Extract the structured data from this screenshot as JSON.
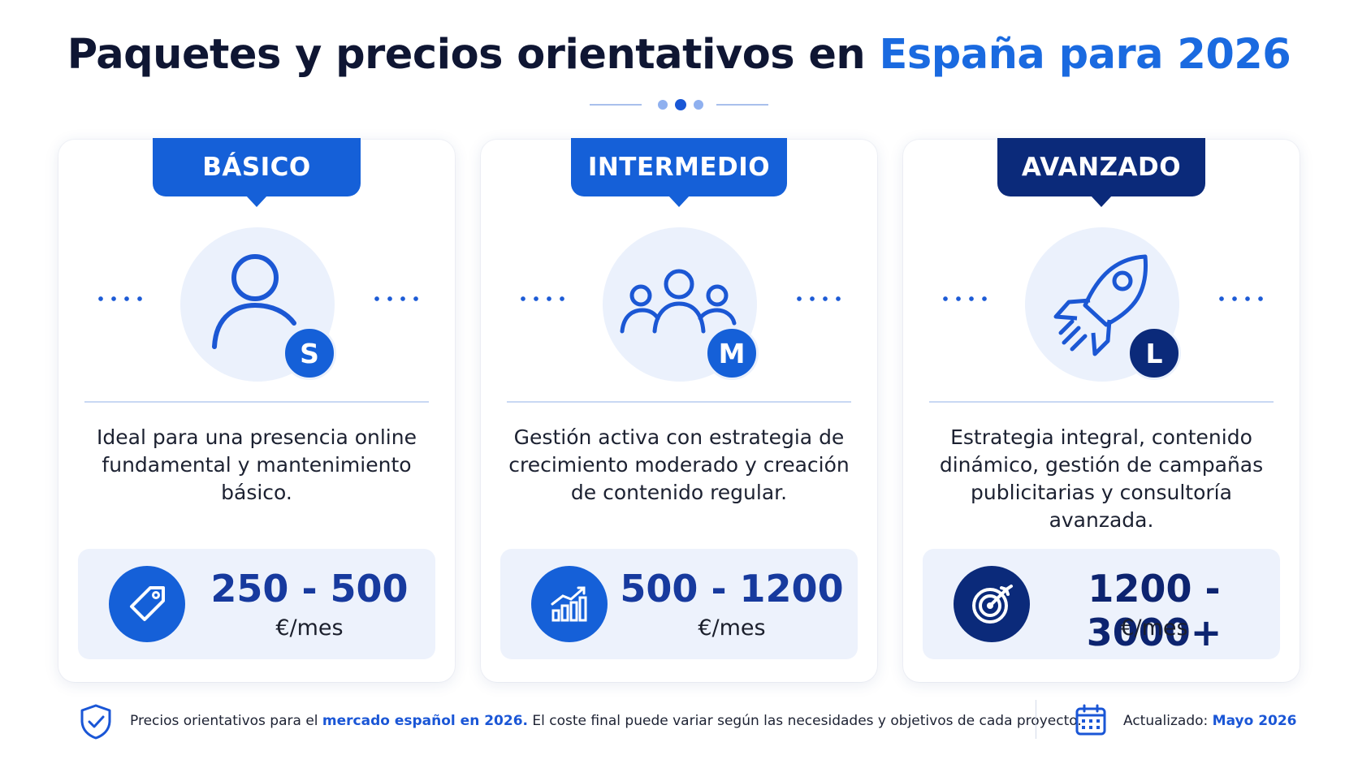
{
  "header": {
    "title_part1": "Paquetes y precios orientativos en ",
    "title_highlight": "España para 2026"
  },
  "plans": [
    {
      "tier": "BÁSICO",
      "badge": "S",
      "icon": "user-icon",
      "description": "Ideal para una presencia online fundamental y mantenimiento básico.",
      "price_range": "250 - 500",
      "unit": "€/mes",
      "price_icon": "price-tag-icon",
      "color": "#1560d8"
    },
    {
      "tier": "INTERMEDIO",
      "badge": "M",
      "icon": "group-icon",
      "description": "Gestión activa con estrategia de crecimiento moderado y creación de contenido regular.",
      "price_range": "500 - 1200",
      "unit": "€/mes",
      "price_icon": "growth-chart-icon",
      "color": "#1560d8"
    },
    {
      "tier": "AVANZADO",
      "badge": "L",
      "icon": "rocket-icon",
      "description": "Estrategia integral, contenido dinámico, gestión de campañas publicitarias y consultoría avanzada.",
      "price_range": "1200 - 3000+",
      "unit": "€/mes",
      "price_icon": "target-icon",
      "color": "#0b2a7a"
    }
  ],
  "footer": {
    "note_pre": "Precios orientativos para el ",
    "note_highlight": "mercado español en 2026.",
    "note_post": " El coste final puede variar según las necesidades y objetivos de cada proyecto.",
    "updated_label": "Actualizado: ",
    "updated_value": "Mayo 2026"
  },
  "colors": {
    "accent": "#1a6ae0",
    "primary": "#1560d8",
    "dark": "#0b2a7a",
    "soft_bg": "#edf2fc"
  }
}
